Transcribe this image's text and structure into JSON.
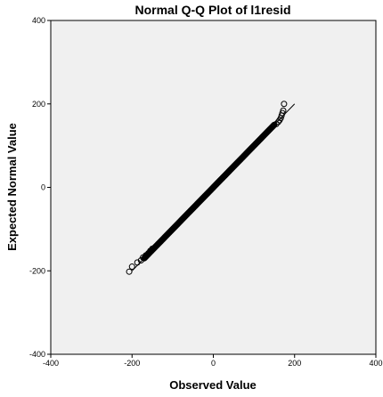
{
  "chart_data": {
    "type": "scatter",
    "title": "Normal Q-Q Plot of l1resid",
    "xlabel": "Observed Value",
    "ylabel": "Expected Normal Value",
    "xlim": [
      -400,
      400
    ],
    "ylim": [
      -400,
      400
    ],
    "x_ticks": [
      -400,
      -200,
      0,
      200,
      400
    ],
    "y_ticks": [
      -400,
      -200,
      0,
      200,
      400
    ],
    "x_tick_labels": [
      "-400",
      "-200",
      "0",
      "200",
      "400"
    ],
    "y_tick_labels": [
      "-400",
      "-200",
      "0",
      "200",
      "400"
    ],
    "grid": false,
    "plot_background": "#f0f0f0",
    "marker_color": "#000000",
    "reference_line": {
      "x": [
        -200,
        200
      ],
      "y": [
        -200,
        200
      ]
    },
    "dense_range": [
      -170,
      150
    ],
    "dense_step": 1.25,
    "series": [
      {
        "points": [
          {
            "x": -207,
            "y": -202
          },
          {
            "x": -200,
            "y": -190
          },
          {
            "x": -187,
            "y": -180
          },
          {
            "x": -178,
            "y": -175
          },
          {
            "x": -173,
            "y": -168
          },
          {
            "x": -166,
            "y": -163
          },
          {
            "x": -160,
            "y": -158
          },
          {
            "x": -155,
            "y": -152
          },
          {
            "x": -150,
            "y": -147
          },
          {
            "x": 155,
            "y": 152
          },
          {
            "x": 160,
            "y": 157
          },
          {
            "x": 163,
            "y": 161
          },
          {
            "x": 166,
            "y": 166
          },
          {
            "x": 168,
            "y": 172
          },
          {
            "x": 170,
            "y": 178
          },
          {
            "x": 172,
            "y": 184
          },
          {
            "x": 174,
            "y": 200
          }
        ]
      }
    ]
  }
}
